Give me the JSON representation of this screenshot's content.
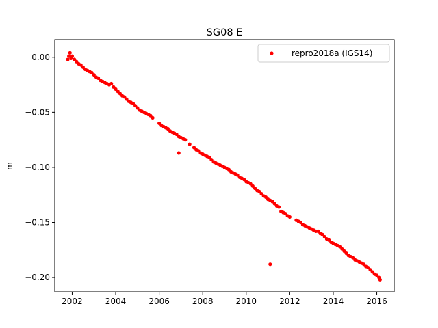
{
  "chart_data": {
    "type": "scatter",
    "title": "SG08 E",
    "xlabel": "",
    "ylabel": "m",
    "xlim": [
      2001.2,
      2016.8
    ],
    "ylim": [
      -0.213,
      0.016
    ],
    "x_ticks": [
      2002,
      2004,
      2006,
      2008,
      2010,
      2012,
      2014,
      2016
    ],
    "x_tick_labels": [
      "2002",
      "2004",
      "2006",
      "2008",
      "2010",
      "2012",
      "2014",
      "2016"
    ],
    "y_ticks": [
      0.0,
      -0.05,
      -0.1,
      -0.15,
      -0.2
    ],
    "y_tick_labels": [
      "0.00",
      "−0.05",
      "−0.10",
      "−0.15",
      "−0.20"
    ],
    "grid": false,
    "legend_position": "top-right",
    "series": [
      {
        "name": "repro2018a (IGS14)",
        "color": "#ff0000",
        "marker": "circle",
        "points": [
          [
            2001.8,
            -0.002
          ],
          [
            2001.85,
            0.001
          ],
          [
            2001.9,
            0.004
          ],
          [
            2001.95,
            -0.001
          ],
          [
            2002.0,
            0.001
          ],
          [
            2002.1,
            -0.002
          ],
          [
            2002.2,
            -0.004
          ],
          [
            2002.3,
            -0.006
          ],
          [
            2002.4,
            -0.007
          ],
          [
            2002.5,
            -0.009
          ],
          [
            2002.6,
            -0.011
          ],
          [
            2002.7,
            -0.012
          ],
          [
            2002.8,
            -0.013
          ],
          [
            2002.9,
            -0.014
          ],
          [
            2003.0,
            -0.016
          ],
          [
            2003.1,
            -0.018
          ],
          [
            2003.2,
            -0.019
          ],
          [
            2003.3,
            -0.021
          ],
          [
            2003.4,
            -0.022
          ],
          [
            2003.5,
            -0.023
          ],
          [
            2003.6,
            -0.024
          ],
          [
            2003.7,
            -0.025
          ],
          [
            2003.8,
            -0.024
          ],
          [
            2003.9,
            -0.027
          ],
          [
            2004.0,
            -0.029
          ],
          [
            2004.1,
            -0.031
          ],
          [
            2004.2,
            -0.033
          ],
          [
            2004.3,
            -0.035
          ],
          [
            2004.4,
            -0.036
          ],
          [
            2004.5,
            -0.038
          ],
          [
            2004.6,
            -0.04
          ],
          [
            2004.7,
            -0.041
          ],
          [
            2004.8,
            -0.042
          ],
          [
            2004.9,
            -0.044
          ],
          [
            2005.0,
            -0.046
          ],
          [
            2005.1,
            -0.048
          ],
          [
            2005.2,
            -0.049
          ],
          [
            2005.3,
            -0.05
          ],
          [
            2005.4,
            -0.051
          ],
          [
            2005.5,
            -0.052
          ],
          [
            2005.6,
            -0.053
          ],
          [
            2005.7,
            -0.055
          ],
          [
            2006.0,
            -0.06
          ],
          [
            2006.1,
            -0.062
          ],
          [
            2006.2,
            -0.063
          ],
          [
            2006.3,
            -0.064
          ],
          [
            2006.4,
            -0.065
          ],
          [
            2006.5,
            -0.067
          ],
          [
            2006.6,
            -0.068
          ],
          [
            2006.7,
            -0.069
          ],
          [
            2006.8,
            -0.07
          ],
          [
            2006.9,
            -0.072
          ],
          [
            2007.0,
            -0.073
          ],
          [
            2007.1,
            -0.074
          ],
          [
            2007.2,
            -0.075
          ],
          [
            2007.4,
            -0.079
          ],
          [
            2007.6,
            -0.082
          ],
          [
            2007.7,
            -0.084
          ],
          [
            2007.8,
            -0.085
          ],
          [
            2007.9,
            -0.087
          ],
          [
            2008.0,
            -0.088
          ],
          [
            2008.1,
            -0.089
          ],
          [
            2008.2,
            -0.09
          ],
          [
            2008.3,
            -0.091
          ],
          [
            2008.4,
            -0.093
          ],
          [
            2008.5,
            -0.095
          ],
          [
            2008.6,
            -0.096
          ],
          [
            2008.7,
            -0.097
          ],
          [
            2008.8,
            -0.098
          ],
          [
            2008.9,
            -0.099
          ],
          [
            2009.0,
            -0.1
          ],
          [
            2009.1,
            -0.101
          ],
          [
            2009.2,
            -0.102
          ],
          [
            2009.3,
            -0.104
          ],
          [
            2009.4,
            -0.105
          ],
          [
            2009.5,
            -0.106
          ],
          [
            2009.6,
            -0.107
          ],
          [
            2009.7,
            -0.109
          ],
          [
            2009.8,
            -0.11
          ],
          [
            2009.9,
            -0.111
          ],
          [
            2010.0,
            -0.113
          ],
          [
            2010.1,
            -0.114
          ],
          [
            2010.2,
            -0.115
          ],
          [
            2010.3,
            -0.117
          ],
          [
            2010.4,
            -0.119
          ],
          [
            2010.5,
            -0.121
          ],
          [
            2010.6,
            -0.122
          ],
          [
            2010.7,
            -0.124
          ],
          [
            2010.8,
            -0.126
          ],
          [
            2010.9,
            -0.127
          ],
          [
            2011.0,
            -0.129
          ],
          [
            2011.1,
            -0.13
          ],
          [
            2011.2,
            -0.131
          ],
          [
            2011.3,
            -0.133
          ],
          [
            2011.4,
            -0.135
          ],
          [
            2011.5,
            -0.136
          ],
          [
            2011.6,
            -0.14
          ],
          [
            2011.7,
            -0.141
          ],
          [
            2011.8,
            -0.142
          ],
          [
            2011.9,
            -0.144
          ],
          [
            2012.0,
            -0.145
          ],
          [
            2012.3,
            -0.148
          ],
          [
            2012.4,
            -0.149
          ],
          [
            2012.5,
            -0.15
          ],
          [
            2012.6,
            -0.152
          ],
          [
            2012.7,
            -0.153
          ],
          [
            2012.8,
            -0.154
          ],
          [
            2012.9,
            -0.155
          ],
          [
            2013.0,
            -0.156
          ],
          [
            2013.1,
            -0.157
          ],
          [
            2013.2,
            -0.158
          ],
          [
            2013.3,
            -0.158
          ],
          [
            2013.4,
            -0.16
          ],
          [
            2013.5,
            -0.161
          ],
          [
            2013.6,
            -0.163
          ],
          [
            2013.7,
            -0.165
          ],
          [
            2013.8,
            -0.166
          ],
          [
            2013.9,
            -0.168
          ],
          [
            2014.0,
            -0.169
          ],
          [
            2014.1,
            -0.17
          ],
          [
            2014.2,
            -0.171
          ],
          [
            2014.3,
            -0.172
          ],
          [
            2014.4,
            -0.174
          ],
          [
            2014.5,
            -0.176
          ],
          [
            2014.6,
            -0.178
          ],
          [
            2014.7,
            -0.18
          ],
          [
            2014.8,
            -0.181
          ],
          [
            2014.9,
            -0.182
          ],
          [
            2015.0,
            -0.184
          ],
          [
            2015.1,
            -0.185
          ],
          [
            2015.2,
            -0.186
          ],
          [
            2015.3,
            -0.187
          ],
          [
            2015.4,
            -0.188
          ],
          [
            2015.5,
            -0.19
          ],
          [
            2015.6,
            -0.191
          ],
          [
            2015.7,
            -0.193
          ],
          [
            2015.8,
            -0.195
          ],
          [
            2015.9,
            -0.197
          ],
          [
            2016.0,
            -0.198
          ],
          [
            2016.1,
            -0.2
          ],
          [
            2016.15,
            -0.202
          ],
          [
            2006.9,
            -0.087
          ],
          [
            2011.1,
            -0.188
          ]
        ]
      }
    ]
  }
}
